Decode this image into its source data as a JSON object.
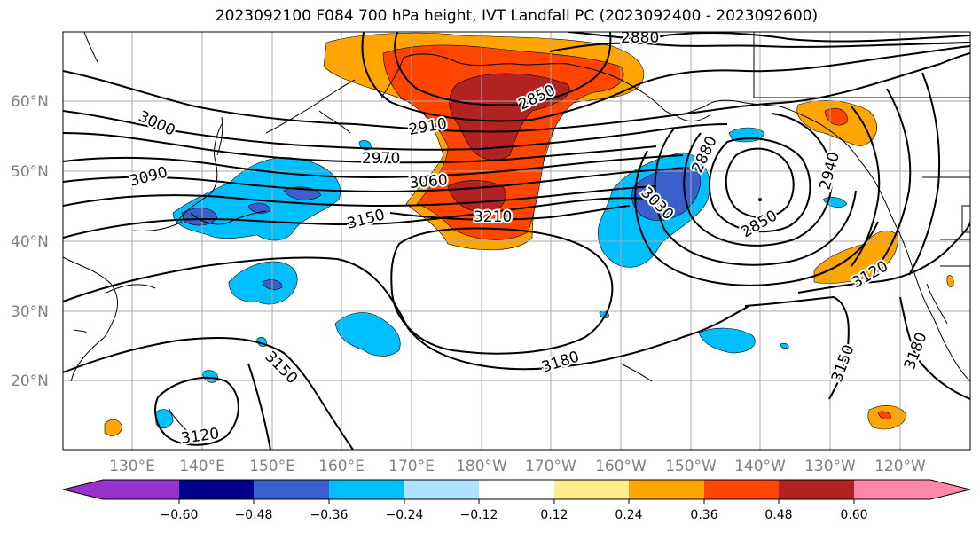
{
  "title": "2023092100 F084 700 hPa height, IVT Landfall PC (2023092400 - 2023092600)",
  "lat_labels": [
    "60°N",
    "50°N",
    "40°N",
    "30°N",
    "20°N"
  ],
  "lon_labels": [
    "130°E",
    "140°E",
    "150°E",
    "160°E",
    "170°E",
    "180°W",
    "170°W",
    "160°W",
    "150°W",
    "140°W",
    "130°W",
    "120°W"
  ],
  "contour_labels": [
    "2880",
    "2850",
    "2910",
    "3000",
    "2970",
    "3090",
    "3060",
    "3150",
    "3210",
    "3030",
    "2880",
    "2850",
    "2940",
    "3120",
    "3150",
    "3180",
    "3180",
    "3150",
    "3120"
  ],
  "colorbar": {
    "ticks": [
      "−0.60",
      "−0.48",
      "−0.36",
      "−0.24",
      "−0.12",
      "0.12",
      "0.24",
      "0.36",
      "0.48",
      "0.60"
    ],
    "colors": [
      "#9932cc",
      "#00008b",
      "#3a5fcd",
      "#00bfff",
      "#b0e2ff",
      "#ffffff",
      "#ffec8b",
      "#ffa500",
      "#ff4500",
      "#b22222",
      "#ff88aa"
    ]
  },
  "fill_colors": {
    "orange": "#ffa500",
    "red": "#ff4500",
    "darkred": "#b22222",
    "yellow": "#ffec8b",
    "blue": "#00bfff",
    "royal": "#3a5fcd"
  }
}
